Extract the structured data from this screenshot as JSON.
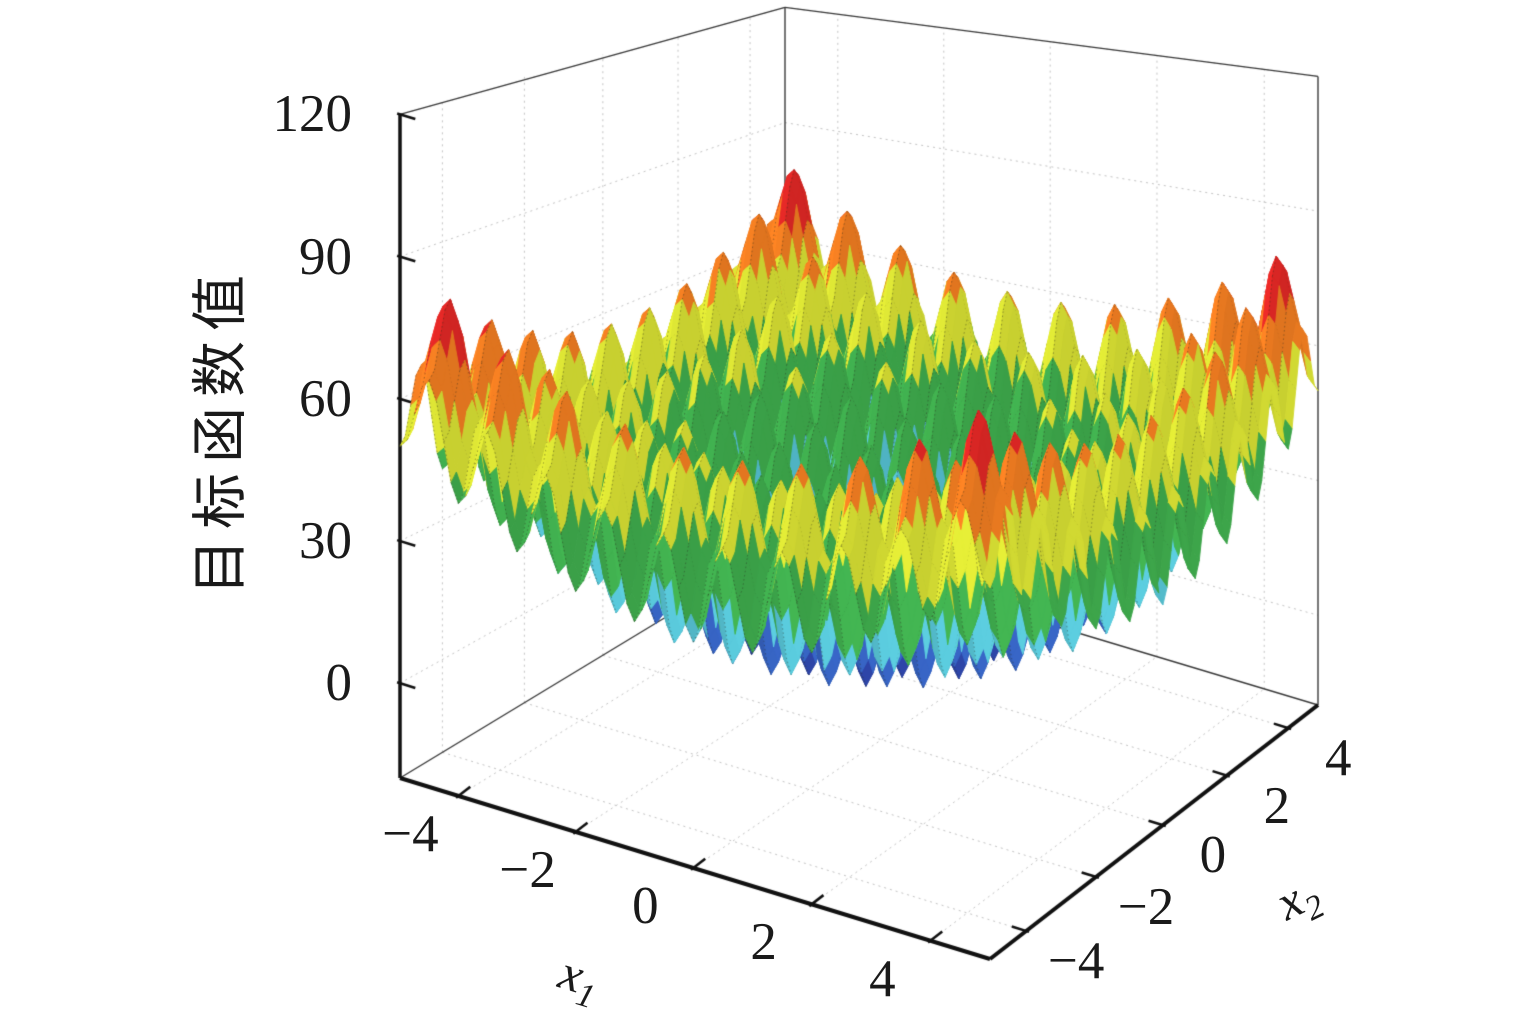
{
  "figure": {
    "background": "#ffffff",
    "title": ""
  },
  "chart_data": {
    "type": "surface",
    "surface_function": "f(x1,x2) = 20 + x1^2 + x2^2 - 10*cos(2*pi*x1) - 10*cos(2*pi*x2) (Rastrigin objective function)",
    "domain": {
      "x1": [
        -5,
        5
      ],
      "x2": [
        -5,
        5
      ]
    },
    "grid_step": 0.125,
    "mesh_line_step": 0.25,
    "z_surface_range": [
      0,
      80.5
    ],
    "axes": {
      "x1": {
        "label_base": "x",
        "label_sub": "1",
        "range": [
          -5,
          5
        ],
        "tick_values": [
          -4,
          -2,
          0,
          2,
          4
        ],
        "tick_labels": [
          "−4",
          "−2",
          "0",
          "2",
          "4"
        ]
      },
      "x2": {
        "label_base": "x",
        "label_sub": "2",
        "range": [
          -5,
          5
        ],
        "tick_values": [
          -4,
          -2,
          0,
          2,
          4
        ],
        "tick_labels": [
          "−4",
          "−2",
          "0",
          "2",
          "4"
        ]
      },
      "z": {
        "label": "目标函数值",
        "range": [
          -20,
          120
        ],
        "tick_values": [
          0,
          30,
          60,
          90,
          120
        ],
        "tick_labels": [
          "0",
          "30",
          "60",
          "90",
          "120"
        ]
      }
    },
    "colormap_bands": [
      {
        "z_max": 4,
        "color": "#5e3193"
      },
      {
        "z_max": 10,
        "color": "#2c429f"
      },
      {
        "z_max": 19,
        "color": "#3560bb"
      },
      {
        "z_max": 28,
        "color": "#56c1d2"
      },
      {
        "z_max": 44,
        "color": "#3fab4d"
      },
      {
        "z_max": 58,
        "color": "#d8e034"
      },
      {
        "z_max": 70,
        "color": "#f07d22"
      },
      {
        "z_max": 9999,
        "color": "#e02826"
      }
    ],
    "grid": {
      "style": "dotted",
      "color": "#c4c4c4",
      "on": true
    },
    "legend": null
  }
}
